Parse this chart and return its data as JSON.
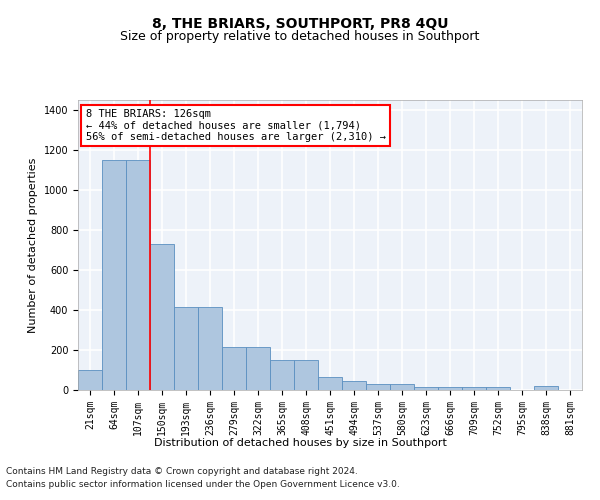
{
  "title": "8, THE BRIARS, SOUTHPORT, PR8 4QU",
  "subtitle": "Size of property relative to detached houses in Southport",
  "xlabel": "Distribution of detached houses by size in Southport",
  "ylabel": "Number of detached properties",
  "footer1": "Contains HM Land Registry data © Crown copyright and database right 2024.",
  "footer2": "Contains public sector information licensed under the Open Government Licence v3.0.",
  "annotation_line1": "8 THE BRIARS: 126sqm",
  "annotation_line2": "← 44% of detached houses are smaller (1,794)",
  "annotation_line3": "56% of semi-detached houses are larger (2,310) →",
  "bar_color": "#aec6df",
  "bar_edge_color": "#5a8fc0",
  "categories": [
    "21sqm",
    "64sqm",
    "107sqm",
    "150sqm",
    "193sqm",
    "236sqm",
    "279sqm",
    "322sqm",
    "365sqm",
    "408sqm",
    "451sqm",
    "494sqm",
    "537sqm",
    "580sqm",
    "623sqm",
    "666sqm",
    "709sqm",
    "752sqm",
    "795sqm",
    "838sqm",
    "881sqm"
  ],
  "values": [
    100,
    1150,
    1150,
    730,
    415,
    415,
    215,
    215,
    150,
    150,
    65,
    45,
    28,
    28,
    15,
    15,
    15,
    15,
    0,
    20,
    0
  ],
  "ylim": [
    0,
    1450
  ],
  "yticks": [
    0,
    200,
    400,
    600,
    800,
    1000,
    1200,
    1400
  ],
  "red_line_x": 2.5,
  "background_color": "#edf2f9",
  "grid_color": "#ffffff",
  "title_fontsize": 10,
  "subtitle_fontsize": 9,
  "axis_label_fontsize": 8,
  "tick_fontsize": 7,
  "annotation_fontsize": 7.5,
  "footer_fontsize": 6.5
}
